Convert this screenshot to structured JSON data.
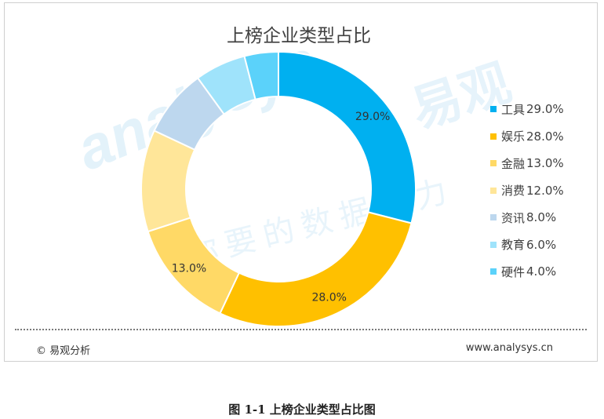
{
  "chart_data": {
    "type": "pie",
    "title": "上榜企业类型占比",
    "categories": [
      "工具",
      "娱乐",
      "金融",
      "消费",
      "资讯",
      "教育",
      "硬件"
    ],
    "values": [
      29.0,
      28.0,
      13.0,
      12.0,
      8.0,
      6.0,
      4.0
    ],
    "value_labels": [
      "29.0%",
      "28.0%",
      "13.0%",
      "",
      "",
      "",
      ""
    ],
    "legend_values": [
      "29.0%",
      "28.0%",
      "13.0%",
      "12.0%",
      "8.0%",
      "6.0%",
      "4.0%"
    ],
    "colors": [
      "#00b0f0",
      "#ffc000",
      "#ffd966",
      "#ffe699",
      "#bdd7ee",
      "#9fe3fb",
      "#5bd2fa"
    ],
    "donut": true,
    "legend_position": "right"
  },
  "watermark": {
    "brand_en": "analysys",
    "brand_cn": "易观",
    "slogan": "你要的数据能力"
  },
  "footer": {
    "copyright": "© 易观分析",
    "site": "www.analysys.cn"
  },
  "caption": "图 1-1  上榜企业类型占比图"
}
